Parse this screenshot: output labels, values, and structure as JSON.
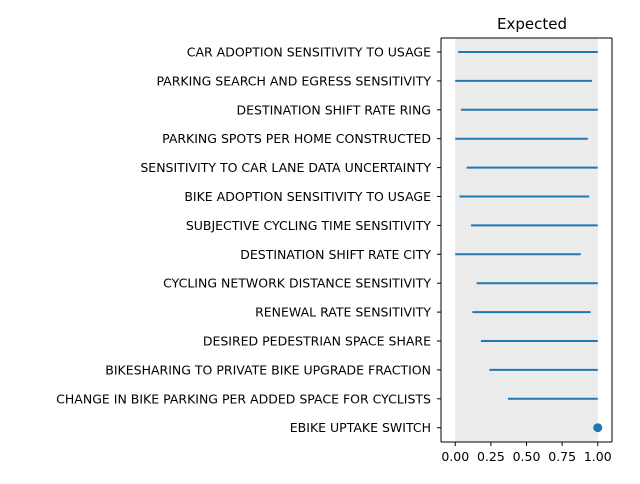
{
  "chart_data": {
    "type": "range",
    "title": "Expected",
    "xlabel": "",
    "ylabel": "",
    "xlim": [
      -0.1,
      1.1
    ],
    "x_ticks": [
      0.0,
      0.25,
      0.5,
      0.75,
      1.0
    ],
    "x_tick_labels": [
      "0.00",
      "0.25",
      "0.50",
      "0.75",
      "1.00"
    ],
    "shaded_band": [
      0.0,
      1.0
    ],
    "colors": {
      "line": "#1f77b4",
      "band": "#ebebeb"
    },
    "grid": false,
    "categories": [
      "CAR ADOPTION SENSITIVITY TO USAGE",
      "PARKING SEARCH AND EGRESS SENSITIVITY",
      "DESTINATION SHIFT RATE RING",
      "PARKING SPOTS PER HOME CONSTRUCTED",
      "SENSITIVITY TO CAR LANE DATA UNCERTAINTY",
      "BIKE ADOPTION SENSITIVITY TO USAGE",
      "SUBJECTIVE CYCLING TIME SENSITIVITY",
      "DESTINATION SHIFT RATE CITY",
      "CYCLING NETWORK DISTANCE SENSITIVITY",
      "RENEWAL RATE SENSITIVITY",
      "DESIRED PEDESTRIAN SPACE SHARE",
      "BIKESHARING TO PRIVATE BIKE UPGRADE FRACTION",
      "CHANGE IN BIKE PARKING PER ADDED SPACE FOR CYCLISTS",
      "EBIKE UPTAKE SWITCH"
    ],
    "ranges": [
      [
        0.02,
        1.0
      ],
      [
        0.0,
        0.96
      ],
      [
        0.04,
        1.0
      ],
      [
        0.0,
        0.93
      ],
      [
        0.08,
        1.0
      ],
      [
        0.03,
        0.94
      ],
      [
        0.11,
        1.0
      ],
      [
        0.0,
        0.88
      ],
      [
        0.15,
        1.0
      ],
      [
        0.12,
        0.95
      ],
      [
        0.18,
        1.0
      ],
      [
        0.24,
        1.0
      ],
      [
        0.37,
        1.0
      ],
      [
        1.0,
        1.0
      ]
    ]
  }
}
